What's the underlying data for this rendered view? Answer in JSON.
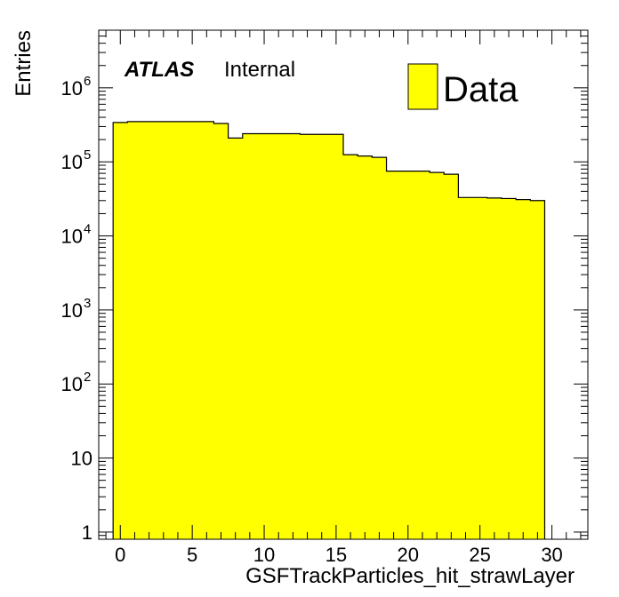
{
  "chart_data": {
    "type": "bar",
    "histogram": true,
    "xlabel": "GSFTrackParticles_hit_strawLayer",
    "ylabel": "Entries",
    "title": "",
    "xlim": [
      -1.5,
      32.5
    ],
    "ylim": [
      0.8,
      6000000
    ],
    "ylog": true,
    "grid": false,
    "legend_position": "top-right",
    "colors": {
      "fill": "#ffff00",
      "line": "#000000"
    },
    "x_ticks": [
      {
        "value": 0,
        "label": "0"
      },
      {
        "value": 5,
        "label": "5"
      },
      {
        "value": 10,
        "label": "10"
      },
      {
        "value": 15,
        "label": "15"
      },
      {
        "value": 20,
        "label": "20"
      },
      {
        "value": 25,
        "label": "25"
      },
      {
        "value": 30,
        "label": "30"
      }
    ],
    "y_ticks": [
      {
        "value": 1,
        "base": "1",
        "exp": ""
      },
      {
        "value": 10,
        "base": "10",
        "exp": ""
      },
      {
        "value": 100,
        "base": "10",
        "exp": "2"
      },
      {
        "value": 1000,
        "base": "10",
        "exp": "3"
      },
      {
        "value": 10000,
        "base": "10",
        "exp": "4"
      },
      {
        "value": 100000,
        "base": "10",
        "exp": "5"
      },
      {
        "value": 1000000,
        "base": "10",
        "exp": "6"
      }
    ],
    "series": [
      {
        "name": "Data",
        "bin_edges": [
          -0.5,
          0.5,
          1.5,
          2.5,
          3.5,
          4.5,
          5.5,
          6.5,
          7.5,
          8.5,
          9.5,
          10.5,
          11.5,
          12.5,
          13.5,
          14.5,
          15.5,
          16.5,
          17.5,
          18.5,
          19.5,
          20.5,
          21.5,
          22.5,
          23.5,
          24.5,
          25.5,
          26.5,
          27.5,
          28.5,
          29.5
        ],
        "values": [
          340000,
          350000,
          350000,
          350000,
          350000,
          350000,
          350000,
          330000,
          210000,
          240000,
          240000,
          240000,
          240000,
          235000,
          235000,
          235000,
          125000,
          120000,
          115000,
          75000,
          75000,
          75000,
          72000,
          68000,
          33000,
          33000,
          32500,
          32000,
          31000,
          30000
        ]
      }
    ],
    "annotations": {
      "experiment": "ATLAS",
      "status": "Internal"
    }
  }
}
